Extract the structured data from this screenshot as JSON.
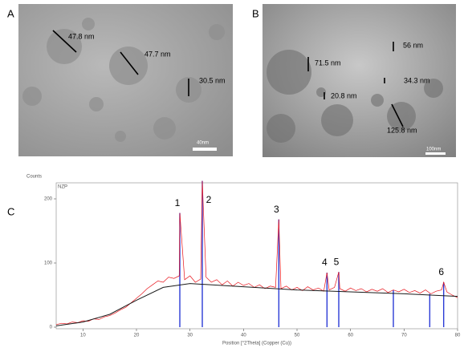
{
  "panels": [
    {
      "label": "A",
      "measurements": [
        "47.8 nm",
        "47.7 nm",
        "30.5 nm"
      ],
      "scale_bar": "40nm"
    },
    {
      "label": "B",
      "measurements": [
        "56 nm",
        "71.5 nm",
        "34.3 nm",
        "20.8 nm",
        "125.8 nm"
      ],
      "scale_bar": "100nm"
    }
  ],
  "chart_data": {
    "type": "line",
    "panel_label": "C",
    "y_label": "Counts",
    "series_label": "NZP",
    "x_label": "Position [°2Theta] (Copper (Cu))",
    "xlim": [
      5,
      80
    ],
    "xticks": [
      10,
      20,
      30,
      40,
      50,
      60,
      70,
      80
    ],
    "ylim": [
      0,
      225
    ],
    "yticks": [
      0,
      100,
      200
    ],
    "observed": {
      "color": "#e8141b",
      "x": [
        5,
        6,
        7,
        8,
        9,
        10,
        11,
        12,
        13,
        14,
        15,
        16,
        17,
        18,
        19,
        20,
        21,
        22,
        23,
        24,
        25,
        26,
        27,
        28,
        28.1,
        29,
        30,
        31,
        32,
        32.3,
        33,
        34,
        35,
        36,
        37,
        38,
        39,
        40,
        41,
        42,
        43,
        44,
        45,
        46,
        46.6,
        47,
        48,
        49,
        50,
        51,
        52,
        53,
        54,
        55,
        55.6,
        56,
        57,
        57.8,
        58,
        59,
        60,
        61,
        62,
        63,
        64,
        65,
        66,
        67,
        68,
        69,
        70,
        71,
        72,
        73,
        74,
        75,
        76,
        77,
        77.4,
        78,
        79,
        80
      ],
      "values": [
        4,
        6,
        5,
        8,
        7,
        10,
        9,
        13,
        12,
        16,
        18,
        22,
        27,
        31,
        38,
        45,
        52,
        60,
        66,
        72,
        70,
        78,
        76,
        80,
        178,
        74,
        80,
        70,
        75,
        228,
        78,
        70,
        74,
        66,
        72,
        64,
        70,
        65,
        68,
        62,
        66,
        60,
        64,
        62,
        168,
        60,
        64,
        58,
        62,
        57,
        63,
        58,
        61,
        56,
        85,
        58,
        62,
        86,
        60,
        56,
        61,
        57,
        60,
        55,
        59,
        56,
        60,
        54,
        58,
        55,
        59,
        54,
        57,
        53,
        58,
        52,
        56,
        58,
        70,
        55,
        50,
        46
      ]
    },
    "background": {
      "color": "#1a1a1a",
      "x": [
        5,
        10,
        15,
        20,
        25,
        30,
        40,
        50,
        60,
        70,
        80
      ],
      "values": [
        2,
        8,
        20,
        42,
        62,
        68,
        63,
        58,
        55,
        52,
        48
      ]
    },
    "peaks": {
      "color": "#2b3bd6",
      "x": [
        28.1,
        32.3,
        46.6,
        55.6,
        57.8,
        68,
        74.8,
        77.4
      ],
      "values": [
        178,
        228,
        168,
        85,
        86,
        58,
        52,
        70
      ],
      "labels": [
        "1",
        "2",
        "3",
        "4",
        "5",
        null,
        null,
        "6"
      ]
    }
  }
}
